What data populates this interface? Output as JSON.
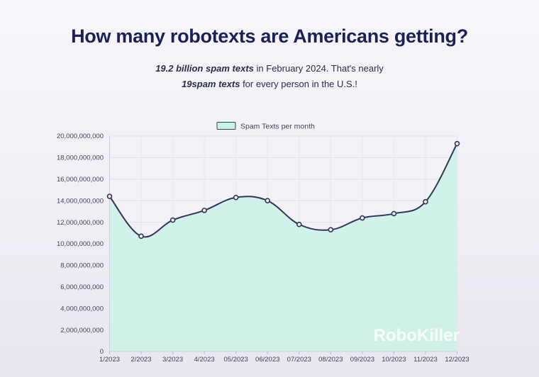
{
  "header": {
    "title": "How many robotexts are Americans getting?",
    "subtitle_line1_emphasis": "19.2 billion spam texts",
    "subtitle_line1_rest": " in February 2024. That's nearly",
    "subtitle_line2_emphasis": "19spam texts",
    "subtitle_line2_rest": " for every person in the U.S.!"
  },
  "watermark": {
    "text": "RoboKiller"
  },
  "theme": {
    "title_color": "#1a2158",
    "line_color": "#32355b",
    "area_fill": "#c9f2e4",
    "marker_fill": "#eef0f6",
    "grid_h_color": "#e2e2ec",
    "grid_v_color": "#e7e7f0",
    "axis_color": "#cdd0dd",
    "tick_color": "#b6bac8",
    "legend_swatch_fill": "#c9f4e5",
    "legend_swatch_border": "#3b3e5e"
  },
  "chart_data": {
    "type": "area",
    "categories": [
      "1/2023",
      "2/2023",
      "3/2023",
      "4/2023",
      "05/2023",
      "06/2023",
      "07/2023",
      "08/2023",
      "09/2023",
      "10/2023",
      "11/2023",
      "12/2023"
    ],
    "series": [
      {
        "name": "Spam Texts per month",
        "values": [
          14400000000,
          10700000000,
          12200000000,
          13100000000,
          14300000000,
          14000000000,
          11800000000,
          11300000000,
          12400000000,
          12800000000,
          13900000000,
          19300000000
        ]
      }
    ],
    "title": "",
    "xlabel": "",
    "ylabel": "",
    "ylim": [
      0,
      20000000000
    ],
    "ytick_step": 2000000000,
    "grid": true,
    "legend_position": "top-center",
    "marker_style": "circle-outline",
    "curve": "smooth"
  }
}
